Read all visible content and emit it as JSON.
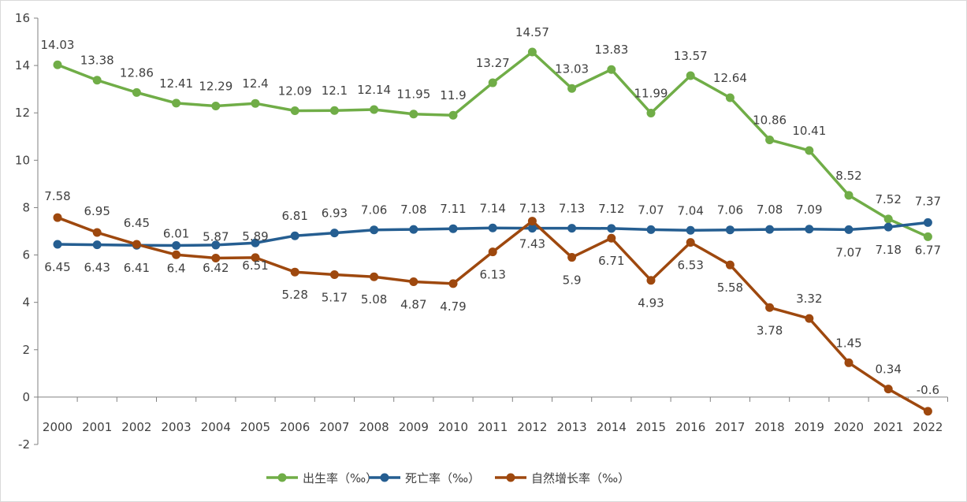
{
  "chart_data": {
    "type": "line",
    "title": "",
    "xlabel": "",
    "ylabel": "",
    "ylim": [
      -2,
      16
    ],
    "yticks": [
      "-2",
      "0",
      "2",
      "4",
      "6",
      "8",
      "10",
      "12",
      "14",
      "16"
    ],
    "categories": [
      "2000",
      "2001",
      "2002",
      "2003",
      "2004",
      "2005",
      "2006",
      "2007",
      "2008",
      "2009",
      "2010",
      "2011",
      "2012",
      "2013",
      "2014",
      "2015",
      "2016",
      "2017",
      "2018",
      "2019",
      "2020",
      "2021",
      "2022"
    ],
    "legend_position": "bottom",
    "series": [
      {
        "name": "出生率（‰）",
        "color": "#70ad47",
        "values": [
          14.03,
          13.38,
          12.86,
          12.41,
          12.29,
          12.4,
          12.09,
          12.1,
          12.14,
          11.95,
          11.9,
          13.27,
          14.57,
          13.03,
          13.83,
          11.99,
          13.57,
          12.64,
          10.86,
          10.41,
          8.52,
          7.52,
          6.77
        ],
        "labels": [
          "14.03",
          "13.38",
          "12.86",
          "12.41",
          "12.29",
          "12.4",
          "12.09",
          "12.1",
          "12.14",
          "11.95",
          "11.9",
          "13.27",
          "14.57",
          "13.03",
          "13.83",
          "11.99",
          "13.57",
          "12.64",
          "10.86",
          "10.41",
          "8.52",
          "7.52",
          "6.77"
        ]
      },
      {
        "name": "死亡率（‰）",
        "color": "#255e91",
        "values": [
          6.45,
          6.43,
          6.41,
          6.4,
          6.42,
          6.51,
          6.81,
          6.93,
          7.06,
          7.08,
          7.11,
          7.14,
          7.13,
          7.13,
          7.12,
          7.07,
          7.04,
          7.06,
          7.08,
          7.09,
          7.07,
          7.18,
          7.37
        ],
        "labels": [
          "6.45",
          "6.43",
          "6.41",
          "6.4",
          "6.42",
          "6.51",
          "6.81",
          "6.93",
          "7.06",
          "7.08",
          "7.11",
          "7.14",
          "7.13",
          "7.13",
          "7.12",
          "7.07",
          "7.04",
          "7.06",
          "7.08",
          "7.09",
          "7.07",
          "7.18",
          "7.37"
        ]
      },
      {
        "name": "自然增长率（‰）",
        "color": "#9e480e",
        "values": [
          7.58,
          6.95,
          6.45,
          6.01,
          5.87,
          5.89,
          5.28,
          5.17,
          5.08,
          4.87,
          4.79,
          6.13,
          7.43,
          5.9,
          6.71,
          4.93,
          6.53,
          5.58,
          3.78,
          3.32,
          1.45,
          0.34,
          -0.6
        ],
        "labels": [
          "7.58",
          "6.95",
          "6.45",
          "6.01",
          "5.87",
          "5.89",
          "5.28",
          "5.17",
          "5.08",
          "4.87",
          "4.79",
          "6.13",
          "7.43",
          "5.9",
          "6.71",
          "4.93",
          "6.53",
          "5.58",
          "3.78",
          "3.32",
          "1.45",
          "0.34",
          "-0.6"
        ]
      }
    ]
  }
}
